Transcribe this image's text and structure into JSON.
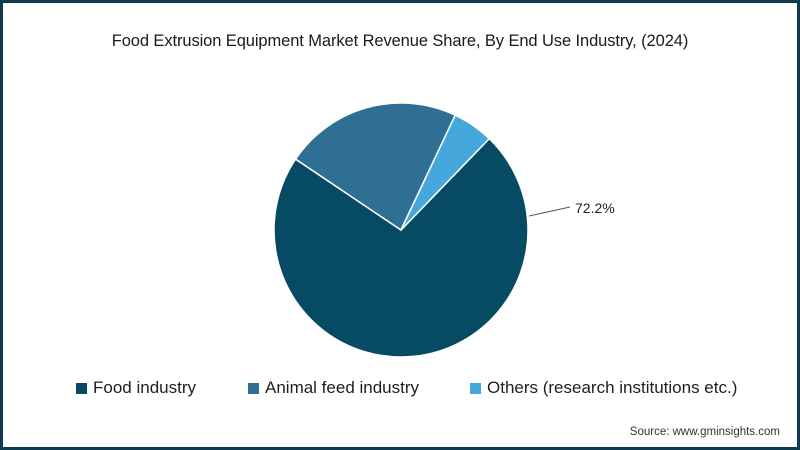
{
  "chart_data": {
    "type": "pie",
    "title": "Food Extrusion Equipment Market Revenue Share, By End Use Industry, (2024)",
    "categories": [
      "Food industry",
      "Animal feed industry",
      "Others (research institutions etc.)"
    ],
    "values": [
      72.2,
      22.6,
      5.2
    ],
    "colors": [
      "#064a63",
      "#2f6f93",
      "#45a7dc"
    ],
    "data_labels": [
      {
        "category": "Food industry",
        "text": "72.2%"
      }
    ],
    "legend_position": "bottom",
    "start_angle_deg": 44,
    "source": "Source: www.gminsights.com"
  },
  "title": "Food Extrusion Equipment Market Revenue Share, By End Use Industry, (2024)",
  "label": "72.2%",
  "legend": [
    {
      "label": "Food industry",
      "color": "#064a63"
    },
    {
      "label": "Animal feed industry",
      "color": "#2f6f93"
    },
    {
      "label": "Others (research institutions etc.)",
      "color": "#45a7dc"
    }
  ],
  "source": "Source: www.gminsights.com",
  "frame_color": "#0d3b52"
}
